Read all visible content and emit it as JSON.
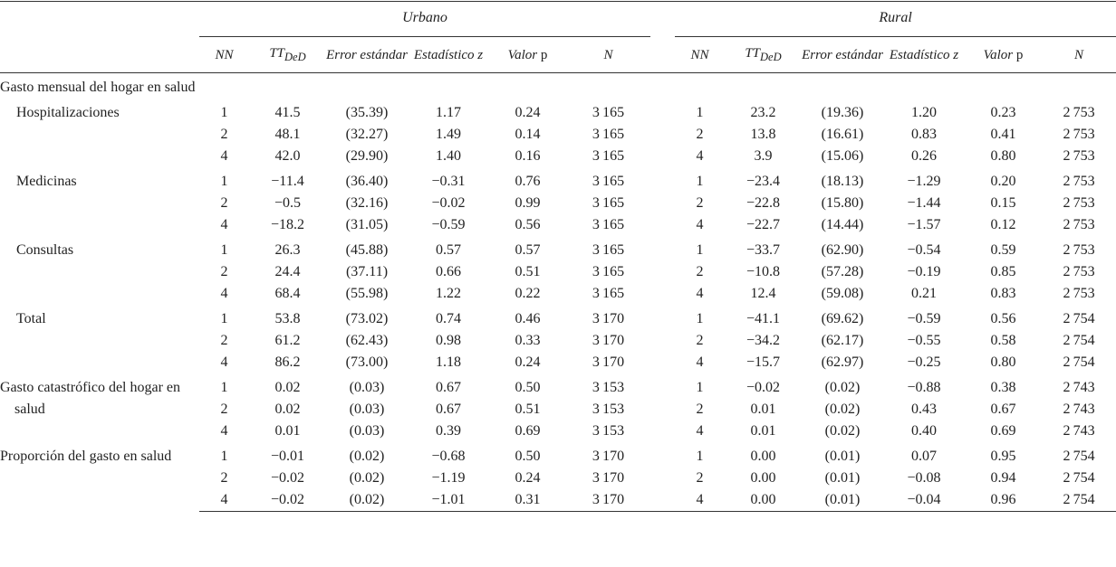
{
  "table": {
    "groups": [
      "Urbano",
      "Rural"
    ],
    "columns": [
      {
        "text": "NN"
      },
      {
        "text": "TT",
        "sub": "DeD"
      },
      {
        "text": "Error estándar"
      },
      {
        "text": "Estadístico z"
      },
      {
        "text": "Valor",
        "roman": "p"
      },
      {
        "text": "N"
      }
    ],
    "sections": [
      {
        "label": "Gasto mensual del hogar en salud",
        "subgroups": [
          {
            "label": "Hospitalizaciones",
            "rows": [
              [
                "1",
                "41.5",
                "(35.39)",
                "1.17",
                "0.24",
                "3 165",
                "1",
                "23.2",
                "(19.36)",
                "1.20",
                "0.23",
                "2 753"
              ],
              [
                "2",
                "48.1",
                "(32.27)",
                "1.49",
                "0.14",
                "3 165",
                "2",
                "13.8",
                "(16.61)",
                "0.83",
                "0.41",
                "2 753"
              ],
              [
                "4",
                "42.0",
                "(29.90)",
                "1.40",
                "0.16",
                "3 165",
                "4",
                "3.9",
                "(15.06)",
                "0.26",
                "0.80",
                "2 753"
              ]
            ]
          },
          {
            "label": "Medicinas",
            "rows": [
              [
                "1",
                "−11.4",
                "(36.40)",
                "−0.31",
                "0.76",
                "3 165",
                "1",
                "−23.4",
                "(18.13)",
                "−1.29",
                "0.20",
                "2 753"
              ],
              [
                "2",
                "−0.5",
                "(32.16)",
                "−0.02",
                "0.99",
                "3 165",
                "2",
                "−22.8",
                "(15.80)",
                "−1.44",
                "0.15",
                "2 753"
              ],
              [
                "4",
                "−18.2",
                "(31.05)",
                "−0.59",
                "0.56",
                "3 165",
                "4",
                "−22.7",
                "(14.44)",
                "−1.57",
                "0.12",
                "2 753"
              ]
            ]
          },
          {
            "label": "Consultas",
            "rows": [
              [
                "1",
                "26.3",
                "(45.88)",
                "0.57",
                "0.57",
                "3 165",
                "1",
                "−33.7",
                "(62.90)",
                "−0.54",
                "0.59",
                "2 753"
              ],
              [
                "2",
                "24.4",
                "(37.11)",
                "0.66",
                "0.51",
                "3 165",
                "2",
                "−10.8",
                "(57.28)",
                "−0.19",
                "0.85",
                "2 753"
              ],
              [
                "4",
                "68.4",
                "(55.98)",
                "1.22",
                "0.22",
                "3 165",
                "4",
                "12.4",
                "(59.08)",
                "0.21",
                "0.83",
                "2 753"
              ]
            ]
          },
          {
            "label": "Total",
            "rows": [
              [
                "1",
                "53.8",
                "(73.02)",
                "0.74",
                "0.46",
                "3 170",
                "1",
                "−41.1",
                "(69.62)",
                "−0.59",
                "0.56",
                "2 754"
              ],
              [
                "2",
                "61.2",
                "(62.43)",
                "0.98",
                "0.33",
                "3 170",
                "2",
                "−34.2",
                "(62.17)",
                "−0.55",
                "0.58",
                "2 754"
              ],
              [
                "4",
                "86.2",
                "(73.00)",
                "1.18",
                "0.24",
                "3 170",
                "4",
                "−15.7",
                "(62.97)",
                "−0.25",
                "0.80",
                "2 754"
              ]
            ]
          }
        ]
      },
      {
        "label": "Gasto catastrófico del hogar en salud",
        "rows": [
          [
            "1",
            "0.02",
            "(0.03)",
            "0.67",
            "0.50",
            "3 153",
            "1",
            "−0.02",
            "(0.02)",
            "−0.88",
            "0.38",
            "2 743"
          ],
          [
            "2",
            "0.02",
            "(0.03)",
            "0.67",
            "0.51",
            "3 153",
            "2",
            "0.01",
            "(0.02)",
            "0.43",
            "0.67",
            "2 743"
          ],
          [
            "4",
            "0.01",
            "(0.03)",
            "0.39",
            "0.69",
            "3 153",
            "4",
            "0.01",
            "(0.02)",
            "0.40",
            "0.69",
            "2 743"
          ]
        ]
      },
      {
        "label": "Proporción del gasto en salud",
        "rows": [
          [
            "1",
            "−0.01",
            "(0.02)",
            "−0.68",
            "0.50",
            "3 170",
            "1",
            "0.00",
            "(0.01)",
            "0.07",
            "0.95",
            "2 754"
          ],
          [
            "2",
            "−0.02",
            "(0.02)",
            "−1.19",
            "0.24",
            "3 170",
            "2",
            "0.00",
            "(0.01)",
            "−0.08",
            "0.94",
            "2 754"
          ],
          [
            "4",
            "−0.02",
            "(0.02)",
            "−1.01",
            "0.31",
            "3 170",
            "4",
            "0.00",
            "(0.01)",
            "−0.04",
            "0.96",
            "2 754"
          ]
        ]
      }
    ]
  }
}
